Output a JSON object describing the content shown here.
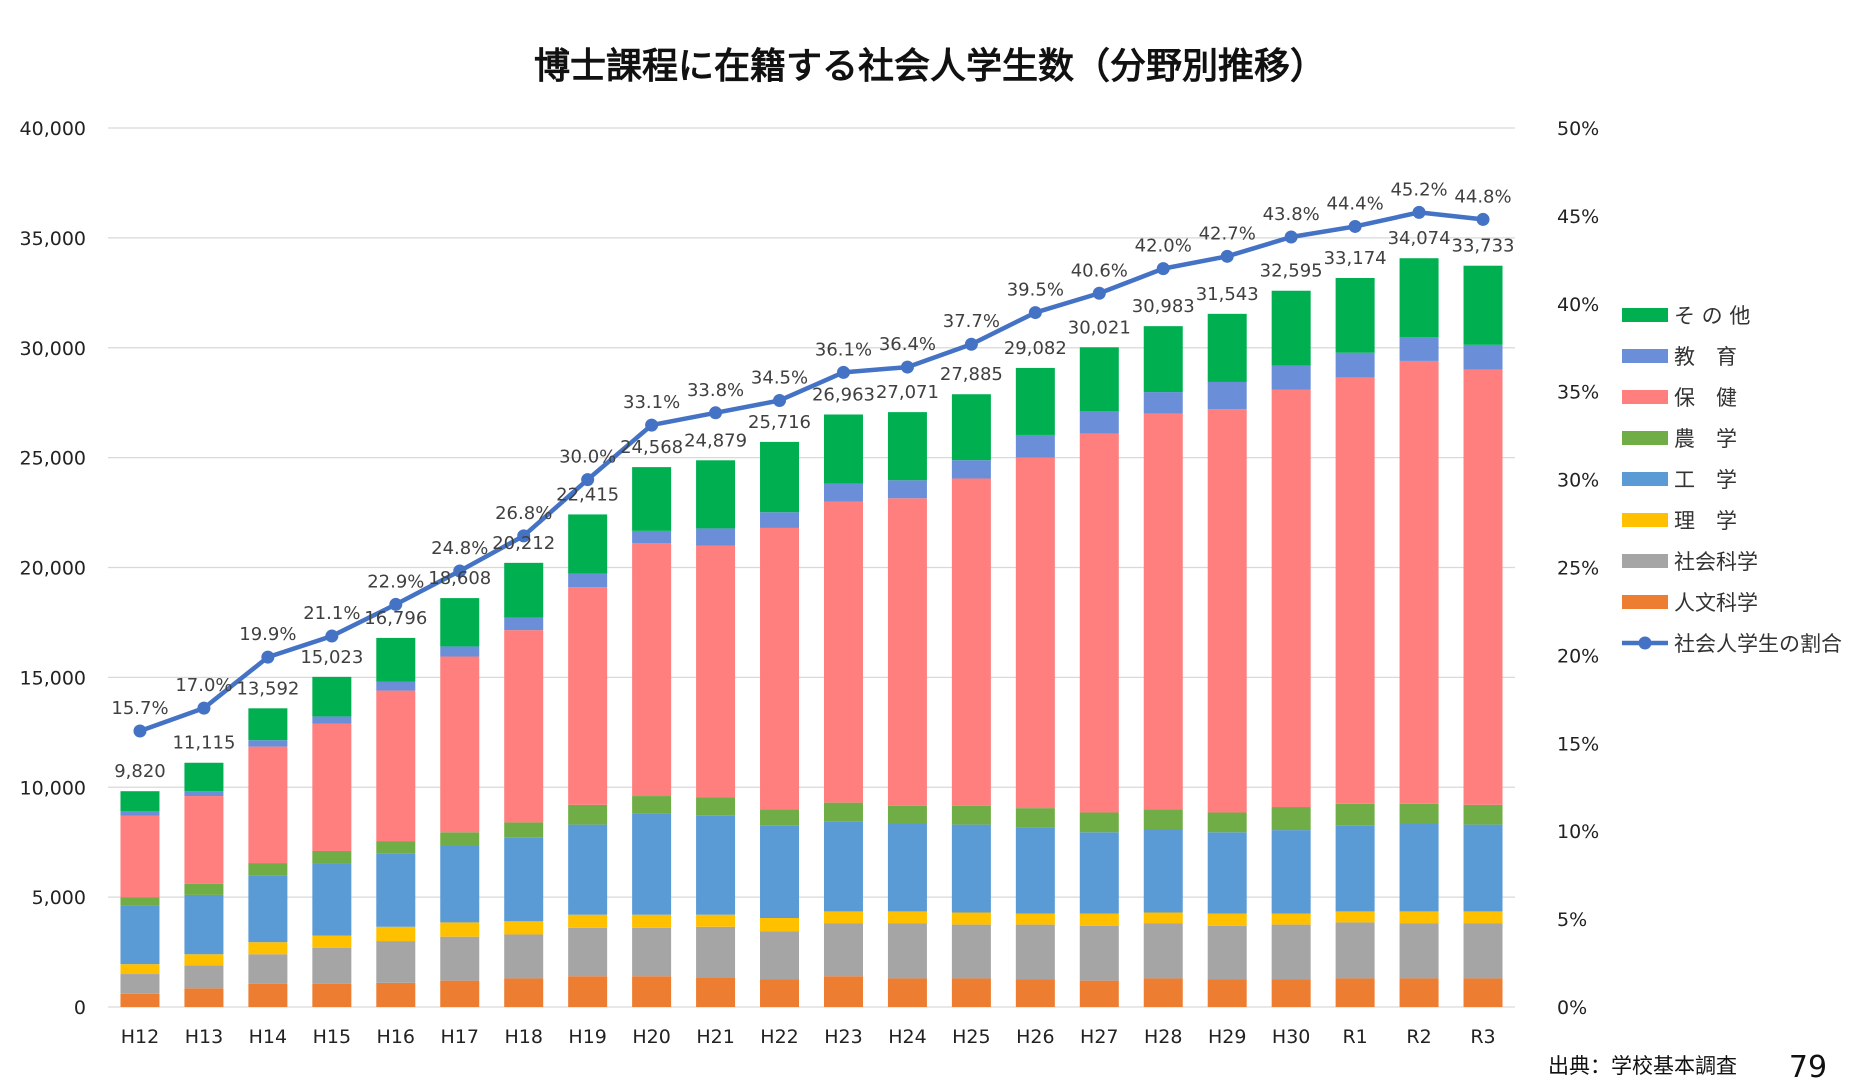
{
  "chart_data": {
    "type": "bar",
    "title": "博士課程に在籍する社会人学生数（分野別推移）",
    "categories": [
      "H12",
      "H13",
      "H14",
      "H15",
      "H16",
      "H17",
      "H18",
      "H19",
      "H20",
      "H21",
      "H22",
      "H23",
      "H24",
      "H25",
      "H26",
      "H27",
      "H28",
      "H29",
      "H30",
      "R1",
      "R2",
      "R3"
    ],
    "stacked": true,
    "ylim": [
      0,
      40000
    ],
    "y_ticks": [
      "0",
      "5,000",
      "10,000",
      "15,000",
      "20,000",
      "25,000",
      "30,000",
      "35,000",
      "40,000"
    ],
    "y2lim": [
      0,
      50
    ],
    "y2_ticks": [
      "0%",
      "5%",
      "10%",
      "15%",
      "20%",
      "25%",
      "30%",
      "35%",
      "40%",
      "45%",
      "50%"
    ],
    "grid": true,
    "legend_position": "right",
    "series": [
      {
        "name": "人文科学",
        "color": "#ED7D31",
        "values": [
          600,
          850,
          1050,
          1050,
          1100,
          1200,
          1300,
          1400,
          1400,
          1350,
          1250,
          1400,
          1300,
          1300,
          1250,
          1200,
          1300,
          1250,
          1250,
          1300,
          1300,
          1300
        ]
      },
      {
        "name": "社会科学",
        "color": "#A5A5A5",
        "values": [
          900,
          1050,
          1350,
          1650,
          1900,
          2000,
          2000,
          2200,
          2200,
          2300,
          2200,
          2400,
          2500,
          2450,
          2500,
          2500,
          2500,
          2450,
          2500,
          2550,
          2500,
          2500
        ]
      },
      {
        "name": "理　学",
        "color": "#FFC000",
        "values": [
          450,
          500,
          550,
          550,
          650,
          650,
          600,
          600,
          600,
          550,
          600,
          550,
          550,
          550,
          500,
          550,
          500,
          550,
          500,
          500,
          550,
          550
        ]
      },
      {
        "name": "工　学",
        "color": "#5B9BD5",
        "values": [
          2650,
          2700,
          3050,
          3300,
          3350,
          3500,
          3800,
          4100,
          4600,
          4500,
          4200,
          4100,
          4000,
          4000,
          3900,
          3700,
          3800,
          3700,
          3800,
          3900,
          4000,
          3950
        ]
      },
      {
        "name": "農　学",
        "color": "#70AD47",
        "values": [
          400,
          500,
          550,
          550,
          550,
          600,
          700,
          900,
          800,
          850,
          750,
          850,
          800,
          850,
          900,
          900,
          900,
          900,
          1050,
          1000,
          900,
          900
        ]
      },
      {
        "name": "保　健",
        "color": "#FF7F7F",
        "values": [
          3700,
          4000,
          5300,
          5800,
          6850,
          8000,
          8750,
          9900,
          11500,
          11450,
          12800,
          13700,
          14000,
          14900,
          15950,
          17250,
          18000,
          18350,
          19000,
          19400,
          20150,
          19800
        ]
      },
      {
        "name": "教　育",
        "color": "#6A8FD8",
        "values": [
          220,
          215,
          292,
          323,
          396,
          458,
          562,
          615,
          568,
          779,
          716,
          813,
          821,
          835,
          1032,
          1021,
          983,
          1243,
          1095,
          1124,
          1074,
          1133
        ]
      },
      {
        "name": "そ の 他",
        "color": "#00B050",
        "values": [
          900,
          1300,
          1450,
          1800,
          2000,
          2200,
          2500,
          2700,
          2900,
          3100,
          3200,
          3150,
          3100,
          3000,
          3050,
          2900,
          3000,
          3100,
          3400,
          3400,
          3600,
          3600
        ]
      }
    ],
    "totals": [
      9820,
      11115,
      13592,
      15023,
      16796,
      18608,
      20212,
      22415,
      24568,
      24879,
      25716,
      26963,
      27071,
      27885,
      29082,
      30021,
      30983,
      31543,
      32595,
      33174,
      34074,
      33733
    ],
    "total_labels": [
      "9,820",
      "11,115",
      "13,592",
      "15,023",
      "16,796",
      "18,608",
      "20,212",
      "22,415",
      "24,568",
      "24,879",
      "25,716",
      "26,963",
      "27,071",
      "27,885",
      "29,082",
      "30,021",
      "30,983",
      "31,543",
      "32,595",
      "33,174",
      "34,074",
      "33,733"
    ],
    "line_series": {
      "name": "社会人学生の割合",
      "color": "#4472C4",
      "axis": "secondary",
      "values": [
        15.7,
        17.0,
        19.9,
        21.1,
        22.9,
        24.8,
        26.8,
        30.0,
        33.1,
        33.8,
        34.5,
        36.1,
        36.4,
        37.7,
        39.5,
        40.6,
        42.0,
        42.7,
        43.8,
        44.4,
        45.2,
        44.8
      ],
      "labels": [
        "15.7%",
        "17.0%",
        "19.9%",
        "21.1%",
        "22.9%",
        "24.8%",
        "26.8%",
        "30.0%",
        "33.1%",
        "33.8%",
        "34.5%",
        "36.1%",
        "36.4%",
        "37.7%",
        "39.5%",
        "40.6%",
        "42.0%",
        "42.7%",
        "43.8%",
        "44.4%",
        "45.2%",
        "44.8%"
      ]
    },
    "legend": [
      "そ の 他",
      "教　育",
      "保　健",
      "農　学",
      "工　学",
      "理　学",
      "社会科学",
      "人文科学",
      "社会人学生の割合"
    ]
  },
  "source": "出典：学校基本調査",
  "page_number": "79"
}
